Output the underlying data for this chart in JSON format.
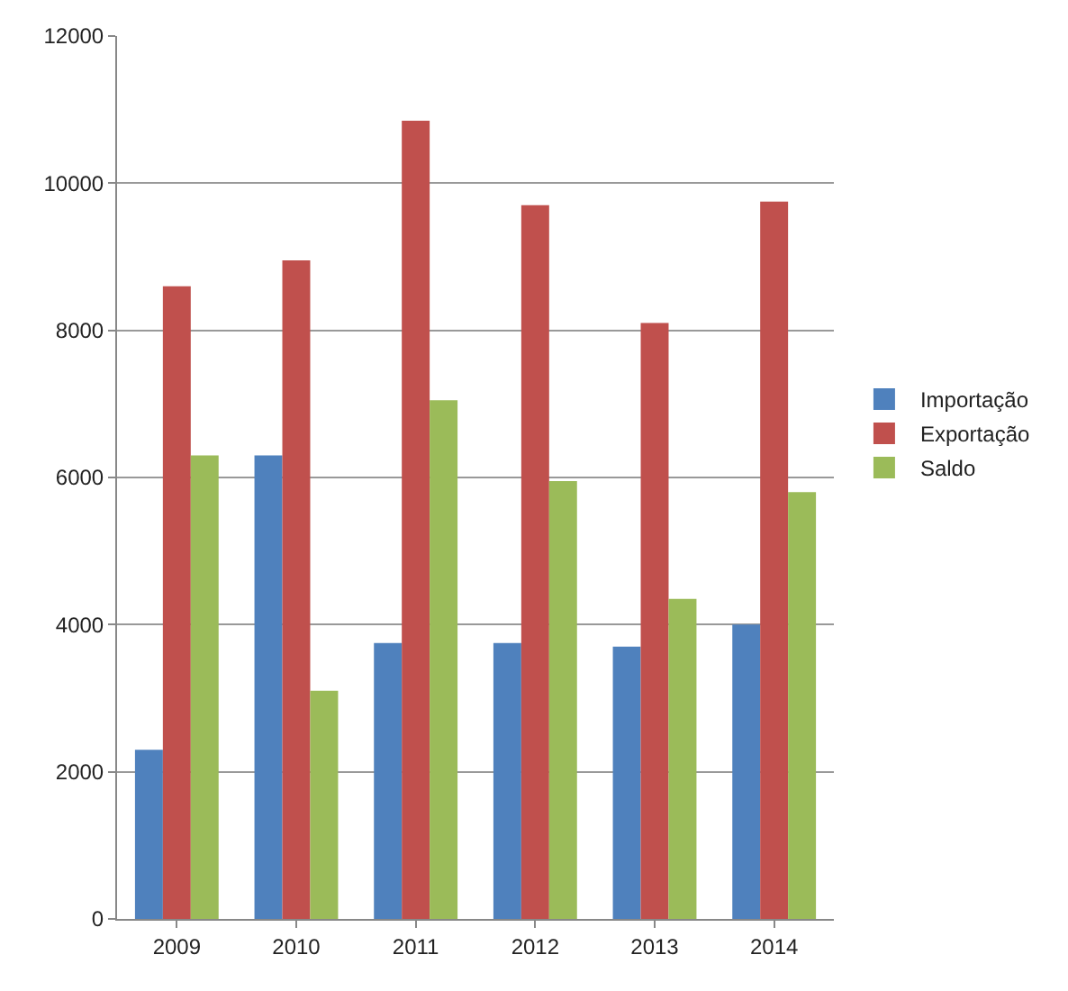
{
  "chart_data": {
    "type": "bar",
    "categories": [
      "2009",
      "2010",
      "2011",
      "2012",
      "2013",
      "2014"
    ],
    "series": [
      {
        "name": "Importação",
        "color": "#4f81bd",
        "values": [
          2300,
          6300,
          3750,
          3750,
          3700,
          4000
        ]
      },
      {
        "name": "Exportação",
        "color": "#c0504d",
        "values": [
          8600,
          8950,
          10850,
          9700,
          8100,
          9750
        ]
      },
      {
        "name": "Saldo",
        "color": "#9bbb59",
        "values": [
          6300,
          3100,
          7050,
          5950,
          4350,
          5800
        ]
      }
    ],
    "ylim": [
      0,
      12000
    ],
    "yticks": [
      0,
      2000,
      4000,
      6000,
      8000,
      10000,
      12000
    ],
    "grid": "y",
    "legend": "right"
  }
}
